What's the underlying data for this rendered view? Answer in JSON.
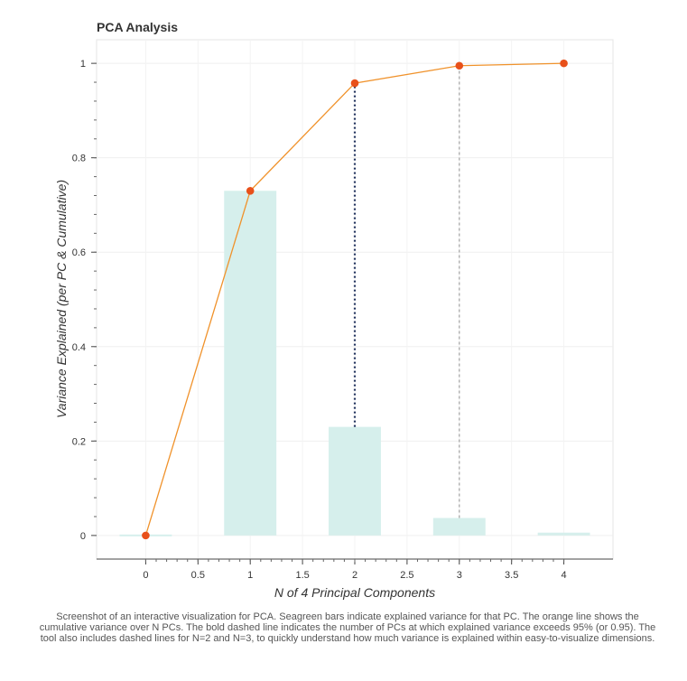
{
  "chart_data": {
    "type": "bar",
    "title": "PCA Analysis",
    "xlabel": "N of 4 Principal Components",
    "ylabel": "Variance Explained (per PC & Cumulative)",
    "xlim": [
      -0.47,
      4.47
    ],
    "ylim": [
      -0.05,
      1.05
    ],
    "x_ticks": [
      0,
      0.5,
      1,
      1.5,
      2,
      2.5,
      3,
      3.5,
      4
    ],
    "x_tick_labels": [
      "0",
      "0.5",
      "1",
      "1.5",
      "2",
      "2.5",
      "3",
      "3.5",
      "4"
    ],
    "y_ticks": [
      0,
      0.2,
      0.4,
      0.6,
      0.8,
      1
    ],
    "y_tick_labels": [
      "0",
      "0.2",
      "0.4",
      "0.6",
      "0.8",
      "1"
    ],
    "grid": true,
    "bar_width": 0.5,
    "bars": {
      "x": [
        0,
        1,
        2,
        3,
        4
      ],
      "values": [
        0.0,
        0.73,
        0.23,
        0.037,
        0.006
      ],
      "color": "#d6efec"
    },
    "cumulative_line": {
      "x": [
        0,
        1,
        2,
        3,
        4
      ],
      "values": [
        0.0,
        0.73,
        0.958,
        0.995,
        1.0
      ],
      "line_color": "#f0922b",
      "marker_color": "#e8501a"
    },
    "dashed_lines": [
      {
        "x": 2,
        "from": 0.23,
        "to": 0.958,
        "style": "bold",
        "color": "#22335e"
      },
      {
        "x": 3,
        "from": 0.037,
        "to": 0.995,
        "style": "thin",
        "color": "#a0a0a0"
      }
    ]
  },
  "caption": "Screenshot of an interactive visualization for PCA. Seagreen bars indicate explained variance for that PC. The orange line shows the cumulative variance over N PCs. The bold dashed line indicates the number of PCs at which explained variance exceeds 95% (or 0.95). The tool also includes dashed lines for N=2 and N=3, to quickly understand how much variance is explained within easy-to-visualize dimensions."
}
